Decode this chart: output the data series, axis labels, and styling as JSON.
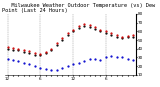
{
  "title": "   Milwaukee Weather Outdoor Temperature (vs) Dew Point (Last 24 Hours)",
  "hours": [
    0,
    1,
    2,
    3,
    4,
    5,
    6,
    7,
    8,
    9,
    10,
    11,
    12,
    13,
    14,
    15,
    16,
    17,
    18,
    19,
    20,
    21,
    22,
    23
  ],
  "temp": [
    42,
    41,
    40,
    38,
    37,
    35,
    34,
    36,
    40,
    46,
    52,
    58,
    62,
    66,
    68,
    67,
    65,
    62,
    60,
    58,
    56,
    54,
    55,
    56
  ],
  "dew": [
    28,
    27,
    26,
    24,
    22,
    20,
    18,
    17,
    16,
    16,
    18,
    20,
    22,
    24,
    26,
    28,
    28,
    27,
    30,
    32,
    31,
    30,
    28,
    27
  ],
  "outdoor": [
    40,
    39,
    38,
    36,
    35,
    33,
    33,
    35,
    38,
    44,
    50,
    56,
    60,
    64,
    66,
    65,
    63,
    60,
    58,
    56,
    54,
    52,
    53,
    54
  ],
  "temp_color": "#cc0000",
  "dew_color": "#0000cc",
  "black_color": "#000000",
  "ylim": [
    10,
    80
  ],
  "yticks": [
    10,
    20,
    30,
    40,
    50,
    60,
    70,
    80
  ],
  "ytick_labels": [
    "10",
    "20",
    "30",
    "40",
    "50",
    "60",
    "70",
    "80"
  ],
  "background_color": "#ffffff",
  "grid_color": "#888888",
  "title_fontsize": 3.8,
  "tick_fontsize": 3.0,
  "marker_size": 1.2,
  "grid_every": 6
}
